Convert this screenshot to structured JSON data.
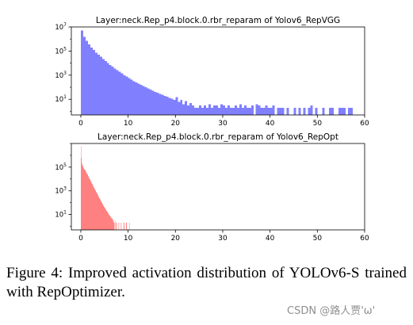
{
  "chart_data": [
    {
      "type": "histogram",
      "title": "Layer:neck.Rep_p4.block.0.rbr_reparam of Yolov6_RepVGG",
      "xlabel": "",
      "ylabel": "",
      "color": "#8080ff",
      "y_scale": "log",
      "xlim": [
        -2,
        60
      ],
      "ylim_exponent": [
        -0.3,
        7
      ],
      "x_ticks": [
        0,
        10,
        20,
        30,
        40,
        50,
        60
      ],
      "x_tick_labels": [
        "0",
        "10",
        "20",
        "30",
        "40",
        "50",
        "60"
      ],
      "y_tick_exponents": [
        1,
        3,
        5,
        7
      ],
      "y_tick_labels": [
        {
          "base": "10",
          "exp": "1"
        },
        {
          "base": "10",
          "exp": "3"
        },
        {
          "base": "10",
          "exp": "5"
        },
        {
          "base": "10",
          "exp": "7"
        }
      ],
      "bin_width": 0.5,
      "bins": [
        {
          "x": 0.0,
          "count": 5000000
        },
        {
          "x": 0.5,
          "count": 1500000
        },
        {
          "x": 1.0,
          "count": 700000
        },
        {
          "x": 1.5,
          "count": 350000
        },
        {
          "x": 2.0,
          "count": 200000
        },
        {
          "x": 2.5,
          "count": 120000
        },
        {
          "x": 3.0,
          "count": 75000
        },
        {
          "x": 3.5,
          "count": 50000
        },
        {
          "x": 4.0,
          "count": 33000
        },
        {
          "x": 4.5,
          "count": 22000
        },
        {
          "x": 5.0,
          "count": 15000
        },
        {
          "x": 5.5,
          "count": 10000
        },
        {
          "x": 6.0,
          "count": 7000
        },
        {
          "x": 6.5,
          "count": 5000
        },
        {
          "x": 7.0,
          "count": 3600
        },
        {
          "x": 7.5,
          "count": 2600
        },
        {
          "x": 8.0,
          "count": 1900
        },
        {
          "x": 8.5,
          "count": 1400
        },
        {
          "x": 9.0,
          "count": 1000
        },
        {
          "x": 9.5,
          "count": 750
        },
        {
          "x": 10.0,
          "count": 560
        },
        {
          "x": 10.5,
          "count": 420
        },
        {
          "x": 11.0,
          "count": 320
        },
        {
          "x": 11.5,
          "count": 250
        },
        {
          "x": 12.0,
          "count": 200
        },
        {
          "x": 12.5,
          "count": 160
        },
        {
          "x": 13.0,
          "count": 125
        },
        {
          "x": 13.5,
          "count": 100
        },
        {
          "x": 14.0,
          "count": 80
        },
        {
          "x": 14.5,
          "count": 65
        },
        {
          "x": 15.0,
          "count": 52
        },
        {
          "x": 15.5,
          "count": 42
        },
        {
          "x": 16.0,
          "count": 35
        },
        {
          "x": 16.5,
          "count": 28
        },
        {
          "x": 17.0,
          "count": 23
        },
        {
          "x": 17.5,
          "count": 19
        },
        {
          "x": 18.0,
          "count": 16
        },
        {
          "x": 18.5,
          "count": 13
        },
        {
          "x": 19.0,
          "count": 11
        },
        {
          "x": 19.5,
          "count": 9
        },
        {
          "x": 20.0,
          "count": 15
        },
        {
          "x": 20.5,
          "count": 6
        },
        {
          "x": 21.0,
          "count": 9
        },
        {
          "x": 21.5,
          "count": 4
        },
        {
          "x": 22.0,
          "count": 7
        },
        {
          "x": 22.5,
          "count": 3
        },
        {
          "x": 23.0,
          "count": 5
        },
        {
          "x": 23.5,
          "count": 3
        },
        {
          "x": 24.0,
          "count": 2
        },
        {
          "x": 24.5,
          "count": 2
        },
        {
          "x": 25.0,
          "count": 3
        },
        {
          "x": 25.5,
          "count": 2
        },
        {
          "x": 26.0,
          "count": 3
        },
        {
          "x": 26.5,
          "count": 2
        },
        {
          "x": 27.0,
          "count": 4
        },
        {
          "x": 27.5,
          "count": 2
        },
        {
          "x": 28.0,
          "count": 3
        },
        {
          "x": 28.5,
          "count": 3
        },
        {
          "x": 29.0,
          "count": 2
        },
        {
          "x": 29.5,
          "count": 4
        },
        {
          "x": 30.0,
          "count": 3
        },
        {
          "x": 30.5,
          "count": 2
        },
        {
          "x": 31.0,
          "count": 3
        },
        {
          "x": 31.5,
          "count": 2
        },
        {
          "x": 32.0,
          "count": 2
        },
        {
          "x": 32.5,
          "count": 3
        },
        {
          "x": 33.0,
          "count": 2
        },
        {
          "x": 33.5,
          "count": 4
        },
        {
          "x": 34.0,
          "count": 2
        },
        {
          "x": 34.5,
          "count": 3
        },
        {
          "x": 35.0,
          "count": 2
        },
        {
          "x": 35.5,
          "count": 2
        },
        {
          "x": 36.0,
          "count": 3
        },
        {
          "x": 36.5,
          "count": 0
        },
        {
          "x": 37.0,
          "count": 4
        },
        {
          "x": 37.5,
          "count": 3
        },
        {
          "x": 38.0,
          "count": 2
        },
        {
          "x": 38.5,
          "count": 2
        },
        {
          "x": 39.0,
          "count": 3
        },
        {
          "x": 39.5,
          "count": 2
        },
        {
          "x": 40.0,
          "count": 2
        },
        {
          "x": 40.5,
          "count": 3
        },
        {
          "x": 41.0,
          "count": 0
        },
        {
          "x": 41.5,
          "count": 2
        },
        {
          "x": 42.0,
          "count": 2
        },
        {
          "x": 42.5,
          "count": 2
        },
        {
          "x": 43.0,
          "count": 0
        },
        {
          "x": 43.5,
          "count": 2
        },
        {
          "x": 44.0,
          "count": 0
        },
        {
          "x": 44.5,
          "count": 0
        },
        {
          "x": 45.0,
          "count": 2
        },
        {
          "x": 45.5,
          "count": 0
        },
        {
          "x": 46.0,
          "count": 2
        },
        {
          "x": 46.5,
          "count": 0
        },
        {
          "x": 47.0,
          "count": 2
        },
        {
          "x": 47.5,
          "count": 0
        },
        {
          "x": 48.0,
          "count": 2
        },
        {
          "x": 48.5,
          "count": 3
        },
        {
          "x": 49.0,
          "count": 0
        },
        {
          "x": 49.5,
          "count": 2
        },
        {
          "x": 50.0,
          "count": 0
        },
        {
          "x": 50.5,
          "count": 0
        },
        {
          "x": 51.0,
          "count": 2
        },
        {
          "x": 51.5,
          "count": 0
        },
        {
          "x": 52.0,
          "count": 0
        },
        {
          "x": 52.5,
          "count": 2
        },
        {
          "x": 53.0,
          "count": 2
        },
        {
          "x": 53.5,
          "count": 0
        },
        {
          "x": 54.0,
          "count": 0
        },
        {
          "x": 54.5,
          "count": 2
        },
        {
          "x": 55.0,
          "count": 2
        },
        {
          "x": 55.5,
          "count": 2
        },
        {
          "x": 56.0,
          "count": 0
        },
        {
          "x": 56.5,
          "count": 2
        },
        {
          "x": 57.0,
          "count": 2
        }
      ]
    },
    {
      "type": "histogram",
      "title": "Layer:neck.Rep_p4.block.0.rbr_reparam of Yolov6_RepOpt",
      "xlabel": "",
      "ylabel": "",
      "color": "#ff8080",
      "y_scale": "log",
      "xlim": [
        -2,
        60
      ],
      "ylim_exponent": [
        -0.3,
        7
      ],
      "x_ticks": [
        0,
        10,
        20,
        30,
        40,
        50,
        60
      ],
      "x_tick_labels": [
        "0",
        "10",
        "20",
        "30",
        "40",
        "50",
        "60"
      ],
      "y_tick_exponents": [
        1,
        3,
        5
      ],
      "y_tick_labels": [
        {
          "base": "10",
          "exp": "1"
        },
        {
          "base": "10",
          "exp": "3"
        },
        {
          "base": "10",
          "exp": "5"
        }
      ],
      "bin_width": 0.1,
      "bins": [
        {
          "x": 0.0,
          "count": 6000000
        },
        {
          "x": 0.1,
          "count": 600000
        },
        {
          "x": 0.2,
          "count": 250000
        },
        {
          "x": 0.3,
          "count": 150000
        },
        {
          "x": 0.4,
          "count": 110000
        },
        {
          "x": 0.5,
          "count": 90000
        },
        {
          "x": 0.6,
          "count": 80000
        },
        {
          "x": 0.7,
          "count": 70000
        },
        {
          "x": 0.8,
          "count": 60000
        },
        {
          "x": 0.9,
          "count": 52000
        },
        {
          "x": 1.0,
          "count": 45000
        },
        {
          "x": 1.1,
          "count": 38000
        },
        {
          "x": 1.2,
          "count": 32000
        },
        {
          "x": 1.3,
          "count": 27000
        },
        {
          "x": 1.4,
          "count": 22000
        },
        {
          "x": 1.5,
          "count": 18000
        },
        {
          "x": 1.6,
          "count": 15000
        },
        {
          "x": 1.7,
          "count": 12500
        },
        {
          "x": 1.8,
          "count": 10500
        },
        {
          "x": 1.9,
          "count": 8800
        },
        {
          "x": 2.0,
          "count": 7300
        },
        {
          "x": 2.1,
          "count": 6100
        },
        {
          "x": 2.2,
          "count": 5100
        },
        {
          "x": 2.3,
          "count": 4300
        },
        {
          "x": 2.4,
          "count": 3600
        },
        {
          "x": 2.5,
          "count": 3000
        },
        {
          "x": 2.6,
          "count": 2500
        },
        {
          "x": 2.7,
          "count": 2100
        },
        {
          "x": 2.8,
          "count": 1750
        },
        {
          "x": 2.9,
          "count": 1450
        },
        {
          "x": 3.0,
          "count": 1200
        },
        {
          "x": 3.1,
          "count": 1000
        },
        {
          "x": 3.2,
          "count": 850
        },
        {
          "x": 3.3,
          "count": 700
        },
        {
          "x": 3.4,
          "count": 590
        },
        {
          "x": 3.5,
          "count": 490
        },
        {
          "x": 3.6,
          "count": 410
        },
        {
          "x": 3.7,
          "count": 340
        },
        {
          "x": 3.8,
          "count": 285
        },
        {
          "x": 3.9,
          "count": 240
        },
        {
          "x": 4.0,
          "count": 200
        },
        {
          "x": 4.1,
          "count": 170
        },
        {
          "x": 4.2,
          "count": 140
        },
        {
          "x": 4.3,
          "count": 118
        },
        {
          "x": 4.4,
          "count": 100
        },
        {
          "x": 4.5,
          "count": 85
        },
        {
          "x": 4.6,
          "count": 72
        },
        {
          "x": 4.7,
          "count": 61
        },
        {
          "x": 4.8,
          "count": 52
        },
        {
          "x": 4.9,
          "count": 44
        },
        {
          "x": 5.0,
          "count": 38
        },
        {
          "x": 5.1,
          "count": 33
        },
        {
          "x": 5.2,
          "count": 28
        },
        {
          "x": 5.3,
          "count": 24
        },
        {
          "x": 5.4,
          "count": 21
        },
        {
          "x": 5.5,
          "count": 18
        },
        {
          "x": 5.6,
          "count": 16
        },
        {
          "x": 5.7,
          "count": 14
        },
        {
          "x": 5.8,
          "count": 12
        },
        {
          "x": 5.9,
          "count": 10
        },
        {
          "x": 6.0,
          "count": 9
        },
        {
          "x": 6.1,
          "count": 8
        },
        {
          "x": 6.2,
          "count": 7
        },
        {
          "x": 6.3,
          "count": 6
        },
        {
          "x": 6.4,
          "count": 5
        },
        {
          "x": 6.5,
          "count": 5
        },
        {
          "x": 6.6,
          "count": 4
        },
        {
          "x": 6.7,
          "count": 4
        },
        {
          "x": 6.8,
          "count": 3
        },
        {
          "x": 6.9,
          "count": 3
        },
        {
          "x": 7.0,
          "count": 2
        },
        {
          "x": 7.2,
          "count": 3
        },
        {
          "x": 7.4,
          "count": 2
        },
        {
          "x": 7.6,
          "count": 2
        },
        {
          "x": 7.9,
          "count": 2
        },
        {
          "x": 8.2,
          "count": 2
        },
        {
          "x": 8.6,
          "count": 2
        },
        {
          "x": 9.1,
          "count": 2
        },
        {
          "x": 9.6,
          "count": 2
        },
        {
          "x": 10.2,
          "count": 2
        }
      ]
    }
  ],
  "caption": "Figure 4:  Improved activation distribution of YOLOv6-S trained with RepOptimizer.",
  "watermark": "CSDN @路人贾'ω'"
}
